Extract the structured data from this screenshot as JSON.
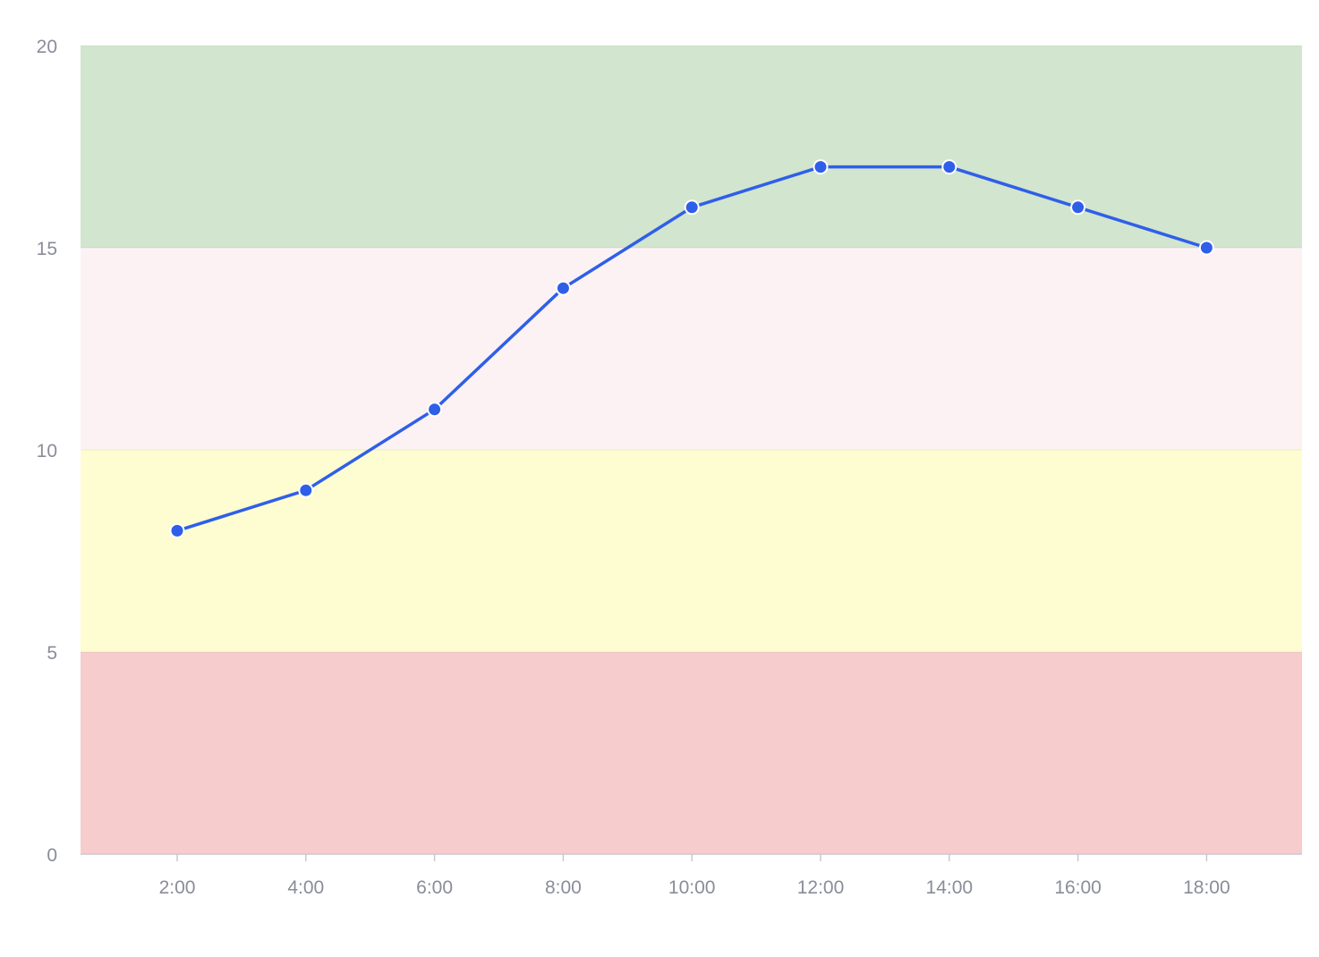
{
  "chart_data": {
    "type": "line",
    "title": "",
    "xlabel": "",
    "ylabel": "",
    "x": [
      "2:00",
      "4:00",
      "6:00",
      "8:00",
      "10:00",
      "12:00",
      "14:00",
      "16:00",
      "18:00"
    ],
    "series": [
      {
        "values": [
          8,
          9,
          11,
          14,
          16,
          17,
          17,
          16,
          15
        ],
        "color": "#2f5fe8"
      }
    ],
    "ylim": [
      0,
      20
    ],
    "yticks": [
      0,
      5,
      10,
      15,
      20
    ],
    "grid": false,
    "legend": "none",
    "bands": [
      {
        "from": 0,
        "to": 5,
        "color": "#f6cccd"
      },
      {
        "from": 5,
        "to": 10,
        "color": "#fdfdd1"
      },
      {
        "from": 10,
        "to": 15,
        "color": "#fcf2f4"
      },
      {
        "from": 15,
        "to": 20,
        "color": "#d2e5cf"
      }
    ]
  }
}
